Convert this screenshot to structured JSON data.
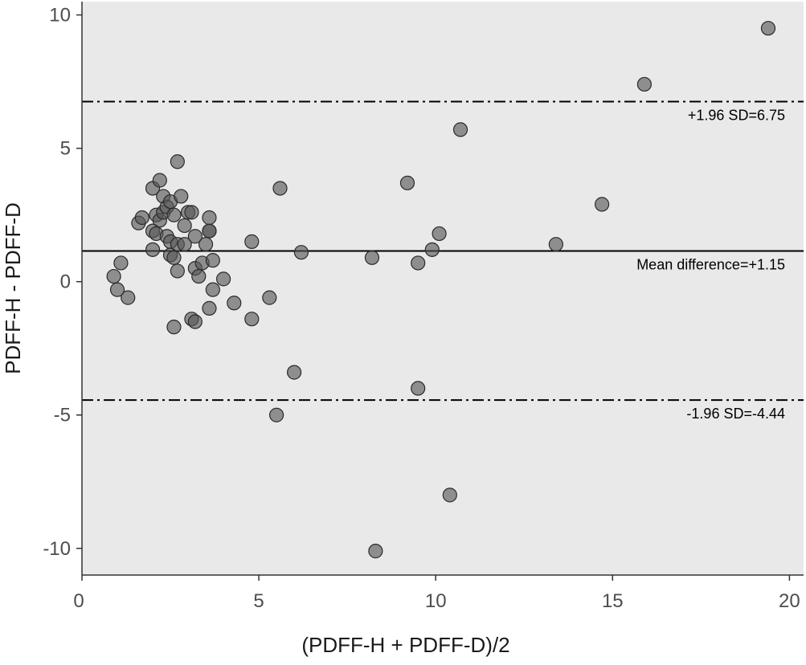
{
  "chart_data": {
    "type": "scatter",
    "title": "",
    "xlabel": "(PDFF-H + PDFF-D)/2",
    "ylabel": "PDFF-H - PDFF-D",
    "xlim": [
      0,
      20.4
    ],
    "ylim": [
      -11,
      10.5
    ],
    "x_ticks": [
      0,
      5,
      10,
      15,
      20
    ],
    "y_ticks": [
      10,
      5,
      0,
      -5,
      -10
    ],
    "grid": false,
    "panel_color": "#e9e9e9",
    "point_color": "#555555",
    "reference_lines": [
      {
        "name": "upper",
        "y": 6.75,
        "style": "dashdot",
        "label": "+1.96 SD=6.75"
      },
      {
        "name": "mean",
        "y": 1.15,
        "style": "solid",
        "label": "Mean difference=+1.15"
      },
      {
        "name": "lower",
        "y": -4.44,
        "style": "dashdot",
        "label": "-1.96 SD=-4.44"
      }
    ],
    "points": [
      {
        "x": 0.9,
        "y": 0.2
      },
      {
        "x": 1.0,
        "y": -0.3
      },
      {
        "x": 1.1,
        "y": 0.7
      },
      {
        "x": 1.3,
        "y": -0.6
      },
      {
        "x": 1.6,
        "y": 2.2
      },
      {
        "x": 1.7,
        "y": 2.4
      },
      {
        "x": 2.0,
        "y": 3.5
      },
      {
        "x": 2.0,
        "y": 1.2
      },
      {
        "x": 2.0,
        "y": 1.9
      },
      {
        "x": 2.1,
        "y": 2.5
      },
      {
        "x": 2.1,
        "y": 1.8
      },
      {
        "x": 2.2,
        "y": 3.8
      },
      {
        "x": 2.2,
        "y": 2.3
      },
      {
        "x": 2.3,
        "y": 3.2
      },
      {
        "x": 2.3,
        "y": 2.6
      },
      {
        "x": 2.4,
        "y": 2.8
      },
      {
        "x": 2.4,
        "y": 1.7
      },
      {
        "x": 2.5,
        "y": 3.0
      },
      {
        "x": 2.5,
        "y": 1.5
      },
      {
        "x": 2.5,
        "y": 1.0
      },
      {
        "x": 2.6,
        "y": 2.5
      },
      {
        "x": 2.6,
        "y": 0.9
      },
      {
        "x": 2.6,
        "y": -1.7
      },
      {
        "x": 2.7,
        "y": 1.4
      },
      {
        "x": 2.7,
        "y": 0.4
      },
      {
        "x": 2.7,
        "y": 4.5
      },
      {
        "x": 2.8,
        "y": 3.2
      },
      {
        "x": 2.9,
        "y": 2.1
      },
      {
        "x": 2.9,
        "y": 1.4
      },
      {
        "x": 3.0,
        "y": 2.6
      },
      {
        "x": 3.1,
        "y": -1.4
      },
      {
        "x": 3.1,
        "y": 2.6
      },
      {
        "x": 3.2,
        "y": 1.7
      },
      {
        "x": 3.2,
        "y": 0.5
      },
      {
        "x": 3.2,
        "y": -1.5
      },
      {
        "x": 3.3,
        "y": 0.2
      },
      {
        "x": 3.4,
        "y": 0.7
      },
      {
        "x": 3.5,
        "y": 1.4
      },
      {
        "x": 3.6,
        "y": 1.9
      },
      {
        "x": 3.6,
        "y": 1.9
      },
      {
        "x": 3.6,
        "y": 2.4
      },
      {
        "x": 3.6,
        "y": -1.0
      },
      {
        "x": 3.7,
        "y": -0.3
      },
      {
        "x": 3.7,
        "y": 0.8
      },
      {
        "x": 4.0,
        "y": 0.1
      },
      {
        "x": 4.3,
        "y": -0.8
      },
      {
        "x": 4.8,
        "y": 1.5
      },
      {
        "x": 4.8,
        "y": -1.4
      },
      {
        "x": 5.3,
        "y": -0.6
      },
      {
        "x": 5.5,
        "y": -5.0
      },
      {
        "x": 5.6,
        "y": 3.5
      },
      {
        "x": 6.0,
        "y": -3.4
      },
      {
        "x": 6.2,
        "y": 1.1
      },
      {
        "x": 8.2,
        "y": 0.9
      },
      {
        "x": 8.3,
        "y": -10.1
      },
      {
        "x": 9.2,
        "y": 3.7
      },
      {
        "x": 9.5,
        "y": 0.7
      },
      {
        "x": 9.5,
        "y": -4.0
      },
      {
        "x": 9.9,
        "y": 1.2
      },
      {
        "x": 10.1,
        "y": 1.8
      },
      {
        "x": 10.4,
        "y": -8.0
      },
      {
        "x": 10.7,
        "y": 5.7
      },
      {
        "x": 13.4,
        "y": 1.4
      },
      {
        "x": 14.7,
        "y": 2.9
      },
      {
        "x": 15.9,
        "y": 7.4
      },
      {
        "x": 19.4,
        "y": 9.5
      }
    ]
  }
}
